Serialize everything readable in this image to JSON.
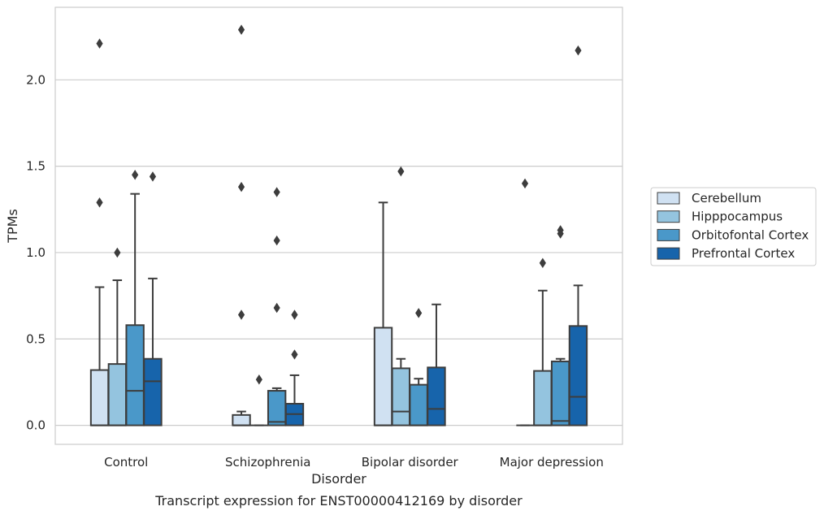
{
  "chart_data": {
    "type": "box",
    "xlabel": "Disorder",
    "ylabel": "TPMs",
    "caption": "Transcript expression for ENST00000412169 by disorder",
    "categories": [
      "Control",
      "Schizophrenia",
      "Bipolar disorder",
      "Major depression"
    ],
    "ylim": [
      -0.11,
      2.42
    ],
    "yticks": [
      0.0,
      0.5,
      1.0,
      1.5,
      2.0
    ],
    "ytick_labels": [
      "0.0",
      "0.5",
      "1.0",
      "1.5",
      "2.0"
    ],
    "grid": "horizontal",
    "legend_position": "right",
    "series": [
      {
        "name": "Cerebellum",
        "color": "#d0e1f2",
        "boxes": [
          {
            "q1": 0.0,
            "median": 0.0,
            "q3": 0.32,
            "whisker_low": 0.0,
            "whisker_high": 0.8,
            "outliers": [
              2.21,
              1.29
            ]
          },
          {
            "q1": 0.0,
            "median": 0.0,
            "q3": 0.06,
            "whisker_low": 0.0,
            "whisker_high": 0.08,
            "outliers": [
              2.29,
              1.38,
              0.64
            ]
          },
          {
            "q1": 0.0,
            "median": 0.0,
            "q3": 0.565,
            "whisker_low": 0.0,
            "whisker_high": 1.29,
            "outliers": []
          },
          {
            "q1": 0.0,
            "median": 0.0,
            "q3": 0.0,
            "whisker_low": 0.0,
            "whisker_high": 0.0,
            "outliers": [
              1.4
            ]
          }
        ]
      },
      {
        "name": "Hipppocampus",
        "color": "#94c4df",
        "boxes": [
          {
            "q1": 0.0,
            "median": 0.0,
            "q3": 0.355,
            "whisker_low": 0.0,
            "whisker_high": 0.84,
            "outliers": [
              1.0
            ]
          },
          {
            "q1": 0.0,
            "median": 0.0,
            "q3": 0.0,
            "whisker_low": 0.0,
            "whisker_high": 0.0,
            "outliers": [
              0.265
            ]
          },
          {
            "q1": 0.0,
            "median": 0.08,
            "q3": 0.33,
            "whisker_low": 0.0,
            "whisker_high": 0.385,
            "outliers": [
              1.47
            ]
          },
          {
            "q1": 0.0,
            "median": 0.0,
            "q3": 0.315,
            "whisker_low": 0.0,
            "whisker_high": 0.78,
            "outliers": [
              0.94
            ]
          }
        ]
      },
      {
        "name": "Orbitofontal Cortex",
        "color": "#4a98c9",
        "boxes": [
          {
            "q1": 0.0,
            "median": 0.2,
            "q3": 0.58,
            "whisker_low": 0.0,
            "whisker_high": 1.34,
            "outliers": [
              1.45
            ]
          },
          {
            "q1": 0.0,
            "median": 0.02,
            "q3": 0.2,
            "whisker_low": 0.0,
            "whisker_high": 0.215,
            "outliers": [
              1.35,
              1.07,
              0.68
            ]
          },
          {
            "q1": 0.0,
            "median": 0.0,
            "q3": 0.235,
            "whisker_low": 0.0,
            "whisker_high": 0.27,
            "outliers": [
              0.65
            ]
          },
          {
            "q1": 0.0,
            "median": 0.025,
            "q3": 0.37,
            "whisker_low": 0.0,
            "whisker_high": 0.385,
            "outliers": [
              1.13,
              1.11
            ]
          }
        ]
      },
      {
        "name": "Prefrontal Cortex",
        "color": "#1764ab",
        "boxes": [
          {
            "q1": 0.0,
            "median": 0.255,
            "q3": 0.385,
            "whisker_low": 0.0,
            "whisker_high": 0.85,
            "outliers": [
              1.44
            ]
          },
          {
            "q1": 0.0,
            "median": 0.065,
            "q3": 0.125,
            "whisker_low": 0.0,
            "whisker_high": 0.29,
            "outliers": [
              0.64,
              0.41
            ]
          },
          {
            "q1": 0.0,
            "median": 0.095,
            "q3": 0.335,
            "whisker_low": 0.0,
            "whisker_high": 0.7,
            "outliers": []
          },
          {
            "q1": 0.0,
            "median": 0.165,
            "q3": 0.575,
            "whisker_low": 0.0,
            "whisker_high": 0.81,
            "outliers": [
              2.17
            ]
          }
        ]
      }
    ]
  }
}
